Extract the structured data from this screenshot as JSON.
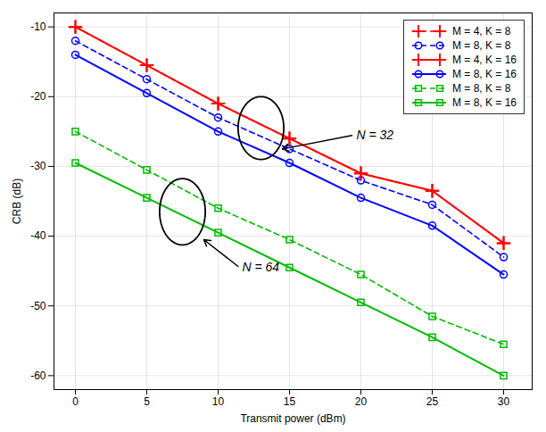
{
  "chart_data": {
    "type": "line",
    "x": [
      0,
      5,
      10,
      15,
      20,
      25,
      30
    ],
    "series": [
      {
        "name": "M = 4, K = 8",
        "color": "#FF0000",
        "line_style": "dashed",
        "marker": "plus",
        "values": [
          -10.0,
          -15.5,
          -21.0,
          -26.0,
          -31.0,
          -33.5,
          -41.0
        ]
      },
      {
        "name": "M = 8, K = 8",
        "color": "#0000FF",
        "line_style": "dashed",
        "marker": "circle",
        "values": [
          -12.0,
          -17.5,
          -23.0,
          -27.5,
          -32.0,
          -35.5,
          -43.0
        ]
      },
      {
        "name": "M = 4, K = 16",
        "color": "#FF0000",
        "line_style": "solid",
        "marker": "plus",
        "values": [
          -10.0,
          -15.5,
          -21.0,
          -26.0,
          -31.0,
          -33.5,
          -41.0
        ]
      },
      {
        "name": "M = 8, K = 16",
        "color": "#0000FF",
        "line_style": "solid",
        "marker": "circle",
        "values": [
          -14.0,
          -19.5,
          -25.0,
          -29.5,
          -34.5,
          -38.5,
          -45.5
        ]
      },
      {
        "name": "M = 8, K = 8",
        "color": "#00BB00",
        "line_style": "dashed",
        "marker": "square",
        "values": [
          -25.0,
          -30.5,
          -36.0,
          -40.5,
          -45.5,
          -51.5,
          -55.5
        ]
      },
      {
        "name": "M = 8, K = 16",
        "color": "#00BB00",
        "line_style": "solid",
        "marker": "square",
        "values": [
          -29.5,
          -34.5,
          -39.5,
          -44.5,
          -49.5,
          -54.5,
          -60.0
        ]
      }
    ],
    "xlabel": "Transmit power (dBm)",
    "ylabel": "CRB (dB)",
    "xlim": [
      -1.5,
      32
    ],
    "ylim": [
      -62,
      -8
    ],
    "xticks": [
      0,
      5,
      10,
      15,
      20,
      25,
      30
    ],
    "yticks": [
      -10,
      -20,
      -30,
      -40,
      -50,
      -60
    ],
    "grid": true,
    "legend": "upper right",
    "ellipses": [
      {
        "center": [
          13.0,
          -24.5
        ],
        "width": 3.2,
        "height": 9.0
      },
      {
        "center": [
          7.5,
          -36.5
        ],
        "width": 3.2,
        "height": 9.5
      }
    ],
    "annotations": [
      {
        "text": "N = 32",
        "xy": [
          14.5,
          -27.5
        ],
        "xytext": [
          19.5,
          -25.5
        ]
      },
      {
        "text": "N = 64",
        "xy": [
          9.0,
          -40.5
        ],
        "xytext": [
          11.5,
          -44.5
        ]
      }
    ]
  }
}
